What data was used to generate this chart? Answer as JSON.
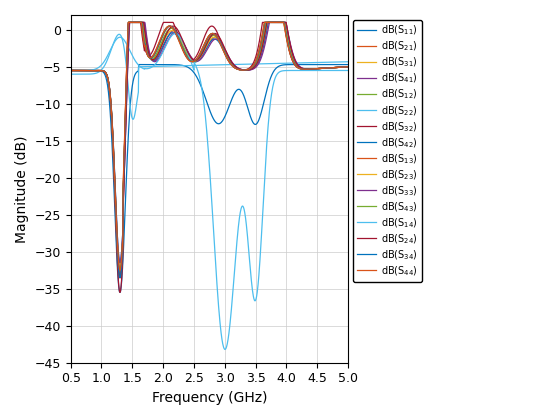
{
  "title": "",
  "xlabel": "Frequency (GHz)",
  "ylabel": "Magnitude (dB)",
  "xlim": [
    0.5,
    5.0
  ],
  "ylim": [
    -45,
    2
  ],
  "xticks": [
    0.5,
    1.0,
    1.5,
    2.0,
    2.5,
    3.0,
    3.5,
    4.0,
    4.5,
    5.0
  ],
  "yticks": [
    0,
    -5,
    -10,
    -15,
    -20,
    -25,
    -30,
    -35,
    -40,
    -45
  ],
  "grid": true,
  "legend_entries": [
    "dB(S_{11})",
    "dB(S_{21})",
    "dB(S_{31})",
    "dB(S_{41})",
    "dB(S_{12})",
    "dB(S_{22})",
    "dB(S_{32})",
    "dB(S_{42})",
    "dB(S_{13})",
    "dB(S_{23})",
    "dB(S_{33})",
    "dB(S_{43})",
    "dB(S_{14})",
    "dB(S_{24})",
    "dB(S_{34})",
    "dB(S_{44})"
  ],
  "colors": [
    "#0072BD",
    "#D95319",
    "#EDB120",
    "#7E2F8E",
    "#77AC30",
    "#4DBEEE",
    "#A2142F",
    "#0072BD",
    "#D95319",
    "#EDB120",
    "#7E2F8E",
    "#77AC30",
    "#4DBEEE",
    "#A2142F",
    "#0072BD",
    "#D95319"
  ],
  "figsize": [
    5.6,
    4.2
  ],
  "dpi": 100
}
